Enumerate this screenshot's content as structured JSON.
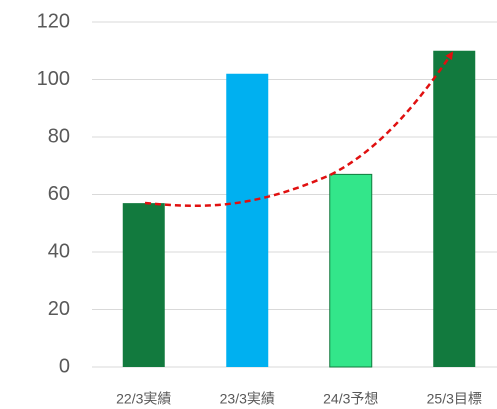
{
  "chart_data": {
    "type": "bar",
    "categories": [
      "22/3実績",
      "23/3実績",
      "24/3予想",
      "25/3目標"
    ],
    "values": [
      57,
      102,
      67,
      110
    ],
    "colors": [
      "#127a3e",
      "#00b0f0",
      "#33e68a",
      "#127a3e"
    ],
    "ylim": [
      0,
      120
    ],
    "yticks": [
      0,
      20,
      40,
      60,
      80,
      100,
      120
    ],
    "grid": true
  }
}
